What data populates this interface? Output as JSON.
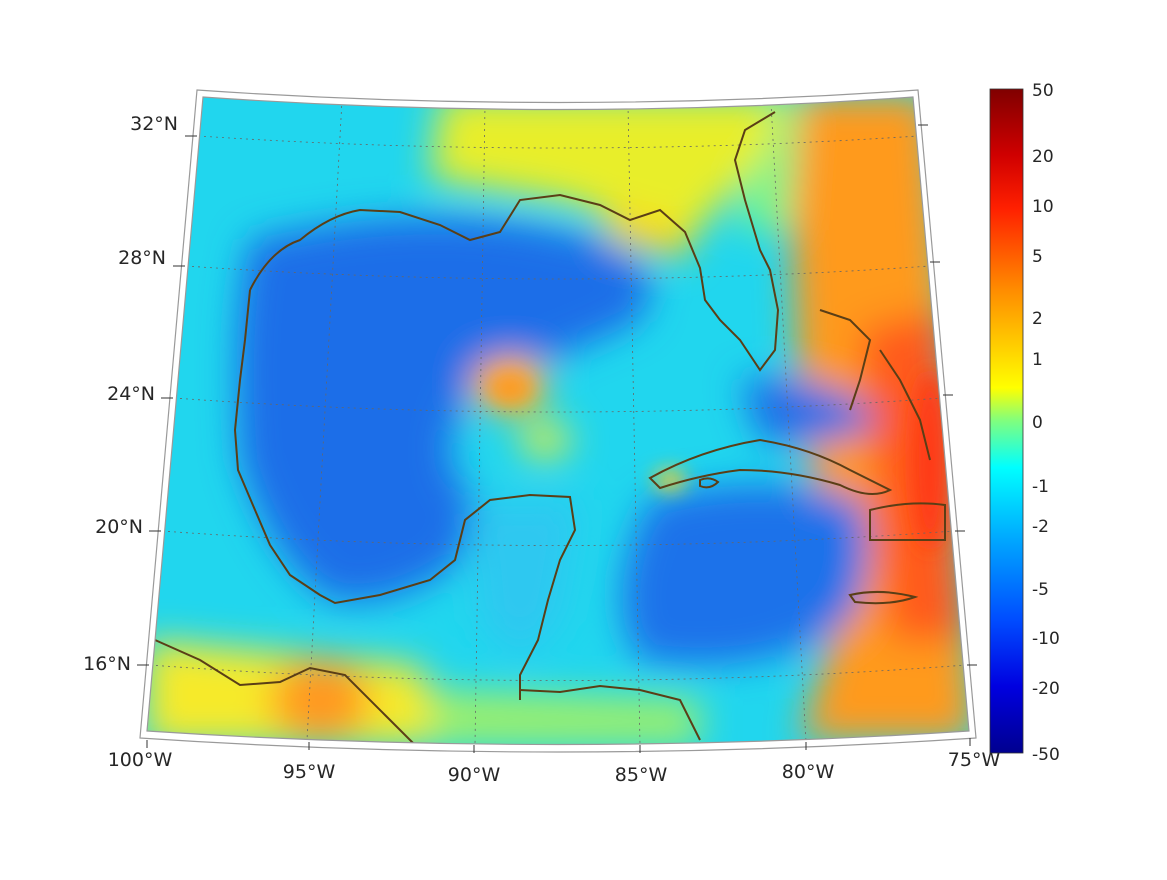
{
  "map": {
    "latitude_labels": [
      "32°N",
      "28°N",
      "24°N",
      "20°N",
      "16°N"
    ],
    "longitude_labels": [
      "100°W",
      "95°W",
      "90°W",
      "85°W",
      "80°W",
      "75°W"
    ]
  },
  "colorbar": {
    "tick_labels": [
      "50",
      "20",
      "10",
      "5",
      "2",
      "1",
      "0",
      "-1",
      "-2",
      "-5",
      "-10",
      "-20",
      "-50"
    ],
    "colormap": "jet",
    "colors": [
      "#800000",
      "#ff0000",
      "#ff8000",
      "#ffff00",
      "#00ffff",
      "#0080ff",
      "#0000ff",
      "#00008f"
    ]
  },
  "colors": {
    "coastline": "#5a3e16",
    "frame": "#9a9a9a",
    "grid": "#666666"
  }
}
